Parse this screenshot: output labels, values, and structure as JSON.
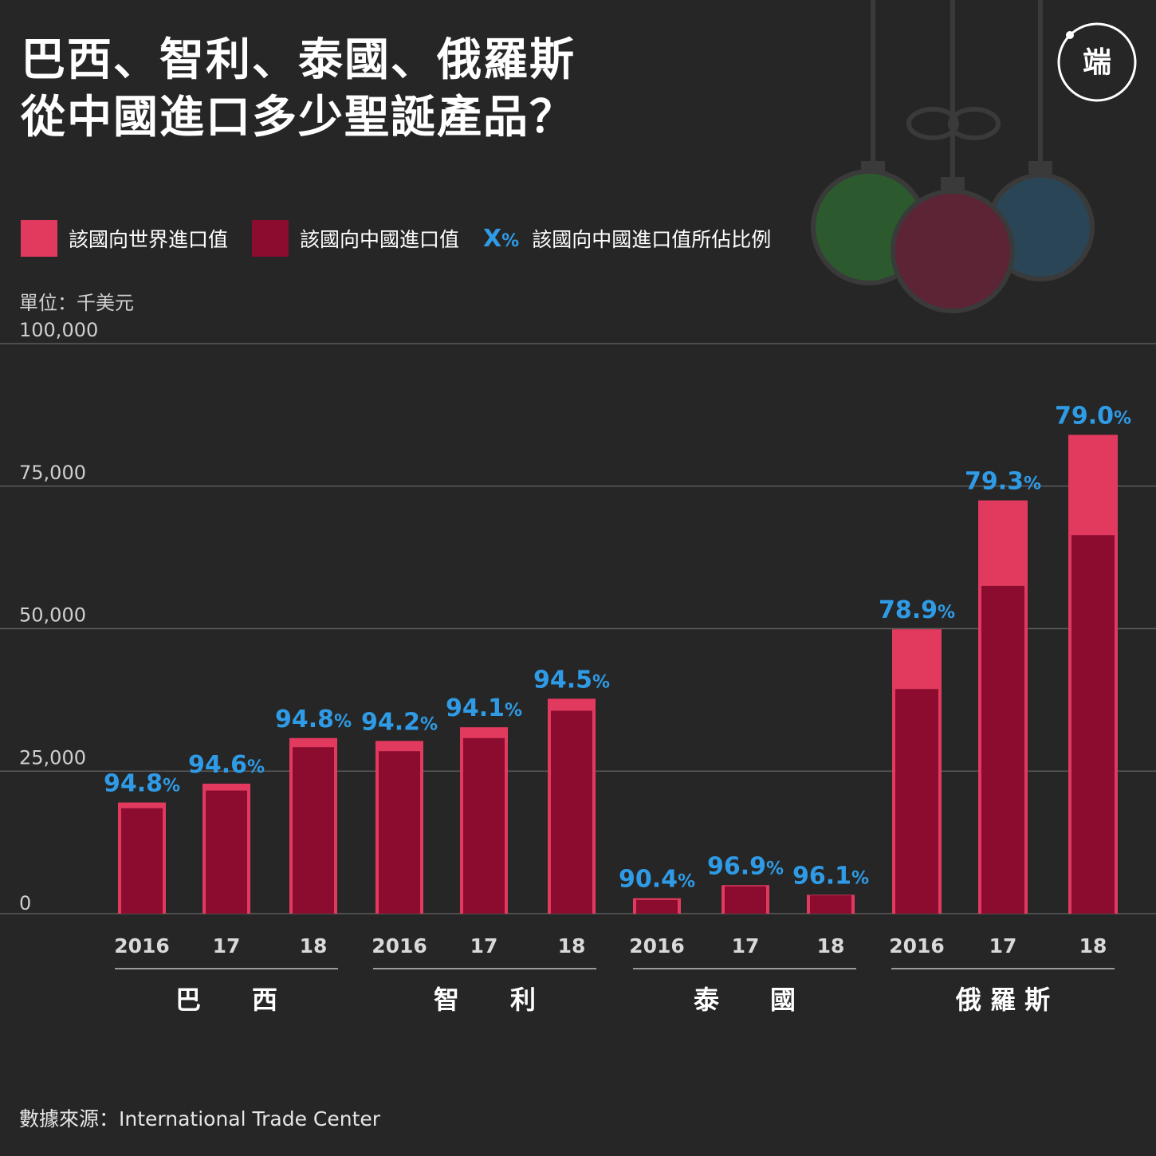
{
  "title": {
    "line1": "巴西、智利、泰國、俄羅斯",
    "line2": "從中國進口多少聖誕產品？"
  },
  "logo": {
    "text": "端",
    "icon": "initium-logo-icon"
  },
  "legend": {
    "world_label": "該國向世界進口值",
    "china_label": "該國向中國進口值",
    "pct_symbol": "X",
    "pct_unit": "%",
    "pct_label": "該國向中國進口值所佔比例"
  },
  "unit_label": "單位：千美元",
  "source_label": "數據來源：International Trade Center",
  "colors": {
    "background": "#262626",
    "world": "#e23a5f",
    "china": "#8c0c2f",
    "percent": "#2f9be6",
    "grid": "#5a5a5a",
    "ornament_green": "#2c5a2e",
    "ornament_red": "#5c2434",
    "ornament_blue": "#2a4656"
  },
  "chart_data": {
    "type": "bar",
    "title": "巴西、智利、泰國、俄羅斯從中國進口多少聖誕產品？",
    "ylabel": "單位：千美元",
    "ylim": [
      0,
      100000
    ],
    "yticks": [
      {
        "value": 0,
        "label": "0"
      },
      {
        "value": 25000,
        "label": "25,000"
      },
      {
        "value": 50000,
        "label": "50,000"
      },
      {
        "value": 75000,
        "label": "75,000"
      },
      {
        "value": 100000,
        "label": "100,000"
      }
    ],
    "grid": true,
    "groups": [
      {
        "name": "巴　　西",
        "bars": [
          {
            "year": "2016",
            "world": 19500,
            "china": 18500,
            "pct": "94.8",
            "pct_unit": "%"
          },
          {
            "year": "17",
            "world": 22800,
            "china": 21600,
            "pct": "94.6",
            "pct_unit": "%"
          },
          {
            "year": "18",
            "world": 30800,
            "china": 29200,
            "pct": "94.8",
            "pct_unit": "%"
          }
        ]
      },
      {
        "name": "智　　利",
        "bars": [
          {
            "year": "2016",
            "world": 30300,
            "china": 28500,
            "pct": "94.2",
            "pct_unit": "%"
          },
          {
            "year": "17",
            "world": 32700,
            "china": 30800,
            "pct": "94.1",
            "pct_unit": "%"
          },
          {
            "year": "18",
            "world": 37700,
            "china": 35600,
            "pct": "94.5",
            "pct_unit": "%"
          }
        ]
      },
      {
        "name": "泰　　國",
        "bars": [
          {
            "year": "2016",
            "world": 2700,
            "china": 2400,
            "pct": "90.4",
            "pct_unit": "%"
          },
          {
            "year": "17",
            "world": 5000,
            "china": 4800,
            "pct": "96.9",
            "pct_unit": "%"
          },
          {
            "year": "18",
            "world": 3300,
            "china": 3200,
            "pct": "96.1",
            "pct_unit": "%"
          }
        ]
      },
      {
        "name": "俄 羅 斯",
        "bars": [
          {
            "year": "2016",
            "world": 49900,
            "china": 39400,
            "pct": "78.9",
            "pct_unit": "%"
          },
          {
            "year": "17",
            "world": 72500,
            "china": 57500,
            "pct": "79.3",
            "pct_unit": "%"
          },
          {
            "year": "18",
            "world": 84000,
            "china": 66400,
            "pct": "79.0",
            "pct_unit": "%"
          }
        ]
      }
    ]
  }
}
